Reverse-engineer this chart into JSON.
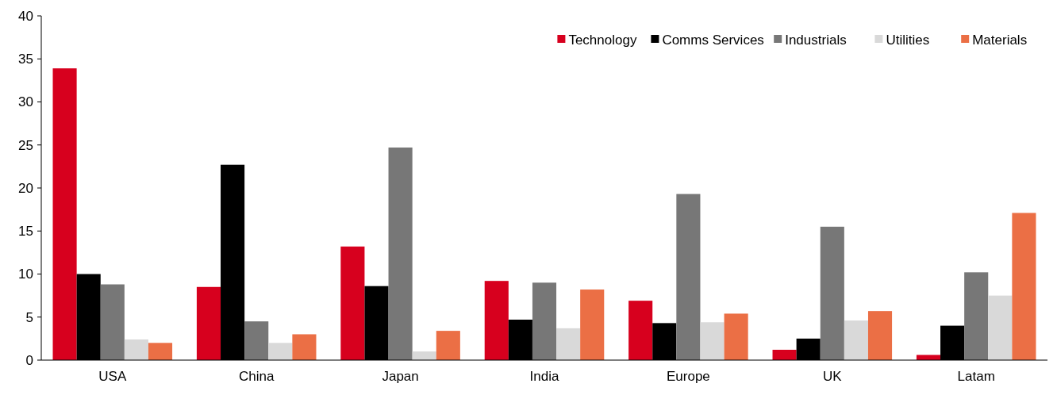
{
  "chart_data": {
    "type": "bar",
    "categories": [
      "USA",
      "China",
      "Japan",
      "India",
      "Europe",
      "UK",
      "Latam"
    ],
    "series": [
      {
        "name": "Technology",
        "color": "#d7001e",
        "values": [
          33.9,
          8.5,
          13.2,
          9.2,
          6.9,
          1.2,
          0.6
        ]
      },
      {
        "name": "Comms Services",
        "color": "#000000",
        "values": [
          10.0,
          22.7,
          8.6,
          4.7,
          4.3,
          2.5,
          4.0
        ]
      },
      {
        "name": "Industrials",
        "color": "#777777",
        "values": [
          8.8,
          4.5,
          24.7,
          9.0,
          19.3,
          15.5,
          10.2
        ]
      },
      {
        "name": "Utilities",
        "color": "#d9d9d9",
        "values": [
          2.4,
          2.0,
          1.0,
          3.7,
          4.4,
          4.6,
          7.5
        ]
      },
      {
        "name": "Materials",
        "color": "#eb6f45",
        "values": [
          2.0,
          3.0,
          3.4,
          8.2,
          5.4,
          5.7,
          17.1
        ]
      }
    ],
    "ylim": [
      0,
      40
    ],
    "yticks": [
      0,
      5,
      10,
      15,
      20,
      25,
      30,
      35,
      40
    ],
    "grid": false,
    "legend": "top right"
  }
}
